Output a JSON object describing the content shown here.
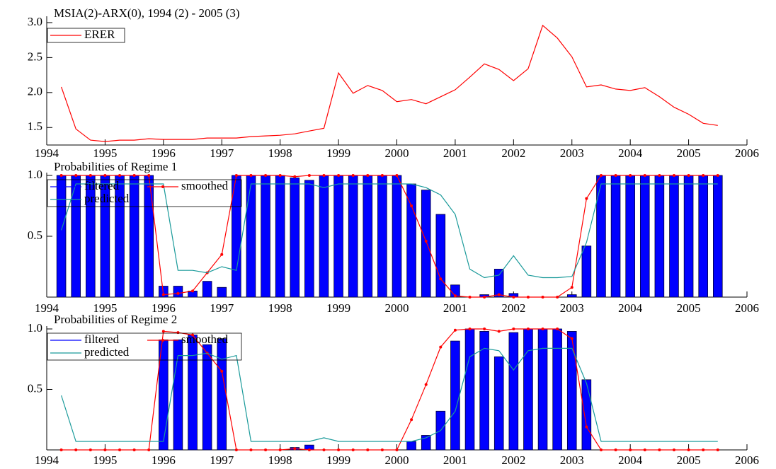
{
  "chart_data": [
    {
      "type": "line",
      "title": "MSIA(2)-ARX(0), 1994 (2) - 2005 (3)",
      "x": [
        1994.25,
        1994.5,
        1994.75,
        1995,
        1995.25,
        1995.5,
        1995.75,
        1996,
        1996.25,
        1996.5,
        1996.75,
        1997,
        1997.25,
        1997.5,
        1997.75,
        1998,
        1998.25,
        1998.5,
        1998.75,
        1999,
        1999.25,
        1999.5,
        1999.75,
        2000,
        2000.25,
        2000.5,
        2000.75,
        2001,
        2001.25,
        2001.5,
        2001.75,
        2002,
        2002.25,
        2002.5,
        2002.75,
        2003,
        2003.25,
        2003.5,
        2003.75,
        2004,
        2004.25,
        2004.5,
        2004.75,
        2005,
        2005.25,
        2005.5
      ],
      "series": [
        {
          "name": "ERER",
          "type": "line",
          "color": "#ff0000",
          "values": [
            2.08,
            1.48,
            1.32,
            1.3,
            1.32,
            1.32,
            1.34,
            1.33,
            1.33,
            1.33,
            1.35,
            1.35,
            1.35,
            1.37,
            1.38,
            1.39,
            1.41,
            1.45,
            1.49,
            2.28,
            1.99,
            2.1,
            2.03,
            1.87,
            1.9,
            1.84,
            1.94,
            2.04,
            2.22,
            2.41,
            2.33,
            2.17,
            2.34,
            2.96,
            2.78,
            2.51,
            2.08,
            2.11,
            2.05,
            2.03,
            2.07,
            1.94,
            1.79,
            1.69,
            1.56,
            1.53
          ]
        }
      ],
      "xlim": [
        1994,
        2006
      ],
      "xticks": [
        1994,
        1995,
        1996,
        1997,
        1998,
        1999,
        2000,
        2001,
        2002,
        2003,
        2004,
        2005,
        2006
      ],
      "ylim": [
        1.25,
        3.05
      ],
      "yticks": [
        {
          "value": 1.5,
          "label": "1.5"
        },
        {
          "value": 2,
          "label": "2.0"
        },
        2.5,
        {
          "value": 3,
          "label": "3.0"
        }
      ],
      "legend": "upper left"
    },
    {
      "type": "bar",
      "title": "Probabilities of Regime 1",
      "x": [
        1994.25,
        1994.5,
        1994.75,
        1995,
        1995.25,
        1995.5,
        1995.75,
        1996,
        1996.25,
        1996.5,
        1996.75,
        1997,
        1997.25,
        1997.5,
        1997.75,
        1998,
        1998.25,
        1998.5,
        1998.75,
        1999,
        1999.25,
        1999.5,
        1999.75,
        2000,
        2000.25,
        2000.5,
        2000.75,
        2001,
        2001.25,
        2001.5,
        2001.75,
        2002,
        2002.25,
        2002.5,
        2002.75,
        2003,
        2003.25,
        2003.5,
        2003.75,
        2004,
        2004.25,
        2004.5,
        2004.75,
        2005,
        2005.25,
        2005.5
      ],
      "series": [
        {
          "name": "filtered",
          "type": "bar",
          "color": "#0000ff",
          "values": [
            1,
            1,
            1,
            1,
            1,
            1,
            1,
            0.09,
            0.09,
            0.05,
            0.13,
            0.08,
            1,
            1,
            1,
            1,
            0.98,
            0.96,
            1,
            1,
            1,
            1,
            1,
            1,
            0.93,
            0.88,
            0.68,
            0.1,
            0,
            0.02,
            0.23,
            0.03,
            0,
            0,
            0,
            0.02,
            0.42,
            1,
            1,
            1,
            1,
            1,
            1,
            1,
            1,
            1
          ]
        },
        {
          "name": "smoothed",
          "type": "line",
          "marker": true,
          "color": "#ff0000",
          "values": [
            1,
            1,
            1,
            1,
            1,
            1,
            1,
            0.02,
            0.03,
            0.05,
            0.2,
            0.35,
            1,
            1,
            1,
            1,
            0.99,
            1,
            1,
            1,
            1,
            1,
            1,
            1,
            0.75,
            0.46,
            0.15,
            0.01,
            0,
            0,
            0.02,
            0,
            0,
            0,
            0,
            0.08,
            0.81,
            1,
            1,
            1,
            1,
            1,
            1,
            1,
            1,
            1
          ]
        },
        {
          "name": "predicted",
          "type": "line",
          "color": "#1a9a9a",
          "values": [
            0.55,
            0.93,
            0.93,
            0.93,
            0.93,
            0.93,
            0.93,
            0.93,
            0.22,
            0.22,
            0.2,
            0.25,
            0.22,
            0.93,
            0.93,
            0.93,
            0.93,
            0.93,
            0.9,
            0.93,
            0.93,
            0.93,
            0.93,
            0.93,
            0.93,
            0.9,
            0.84,
            0.68,
            0.23,
            0.16,
            0.18,
            0.34,
            0.18,
            0.16,
            0.16,
            0.17,
            0.45,
            0.93,
            0.93,
            0.93,
            0.93,
            0.93,
            0.93,
            0.93,
            0.93,
            0.93
          ]
        }
      ],
      "xlim": [
        1994,
        2006
      ],
      "xticks": [
        1994,
        1995,
        1996,
        1997,
        1998,
        1999,
        2000,
        2001,
        2002,
        2003,
        2004,
        2005,
        2006
      ],
      "ylim": [
        0,
        1
      ],
      "yticks": [
        0.5,
        {
          "value": 1,
          "label": "1.0"
        }
      ],
      "legend": "upper left"
    },
    {
      "type": "bar",
      "title": "Probabilities of Regime 2",
      "x": [
        1994.25,
        1994.5,
        1994.75,
        1995,
        1995.25,
        1995.5,
        1995.75,
        1996,
        1996.25,
        1996.5,
        1996.75,
        1997,
        1997.25,
        1997.5,
        1997.75,
        1998,
        1998.25,
        1998.5,
        1998.75,
        1999,
        1999.25,
        1999.5,
        1999.75,
        2000,
        2000.25,
        2000.5,
        2000.75,
        2001,
        2001.25,
        2001.5,
        2001.75,
        2002,
        2002.25,
        2002.5,
        2002.75,
        2003,
        2003.25,
        2003.5,
        2003.75,
        2004,
        2004.25,
        2004.5,
        2004.75,
        2005,
        2005.25,
        2005.5
      ],
      "series": [
        {
          "name": "filtered",
          "type": "bar",
          "color": "#0000ff",
          "values": [
            0,
            0,
            0,
            0,
            0,
            0,
            0,
            0.91,
            0.91,
            0.95,
            0.87,
            0.92,
            0,
            0,
            0,
            0,
            0.02,
            0.04,
            0,
            0,
            0,
            0,
            0,
            0,
            0.07,
            0.12,
            0.32,
            0.9,
            1,
            0.98,
            0.77,
            0.97,
            1,
            1,
            1,
            0.98,
            0.58,
            0,
            0,
            0,
            0,
            0,
            0,
            0,
            0,
            0
          ]
        },
        {
          "name": "smoothed",
          "type": "line",
          "marker": true,
          "color": "#ff0000",
          "values": [
            0,
            0,
            0,
            0,
            0,
            0,
            0,
            0.98,
            0.97,
            0.95,
            0.8,
            0.65,
            0,
            0,
            0,
            0,
            0.01,
            0,
            0,
            0,
            0,
            0,
            0,
            0,
            0.25,
            0.54,
            0.85,
            0.99,
            1,
            1,
            0.98,
            1,
            1,
            1,
            1,
            0.92,
            0.19,
            0,
            0,
            0,
            0,
            0,
            0,
            0,
            0,
            0
          ]
        },
        {
          "name": "predicted",
          "type": "line",
          "color": "#1a9a9a",
          "values": [
            0.45,
            0.07,
            0.07,
            0.07,
            0.07,
            0.07,
            0.07,
            0.07,
            0.78,
            0.78,
            0.8,
            0.75,
            0.78,
            0.07,
            0.07,
            0.07,
            0.07,
            0.07,
            0.1,
            0.07,
            0.07,
            0.07,
            0.07,
            0.07,
            0.07,
            0.1,
            0.16,
            0.32,
            0.77,
            0.84,
            0.82,
            0.66,
            0.82,
            0.84,
            0.84,
            0.84,
            0.55,
            0.07,
            0.07,
            0.07,
            0.07,
            0.07,
            0.07,
            0.07,
            0.07,
            0.07
          ]
        }
      ],
      "xlim": [
        1994,
        2006
      ],
      "xticks": [
        1994,
        1995,
        1996,
        1997,
        1998,
        1999,
        2000,
        2001,
        2002,
        2003,
        2004,
        2005,
        2006
      ],
      "ylim": [
        0,
        1
      ],
      "yticks": [
        0.5,
        {
          "value": 1,
          "label": "1.0"
        }
      ],
      "legend": "upper left"
    }
  ]
}
